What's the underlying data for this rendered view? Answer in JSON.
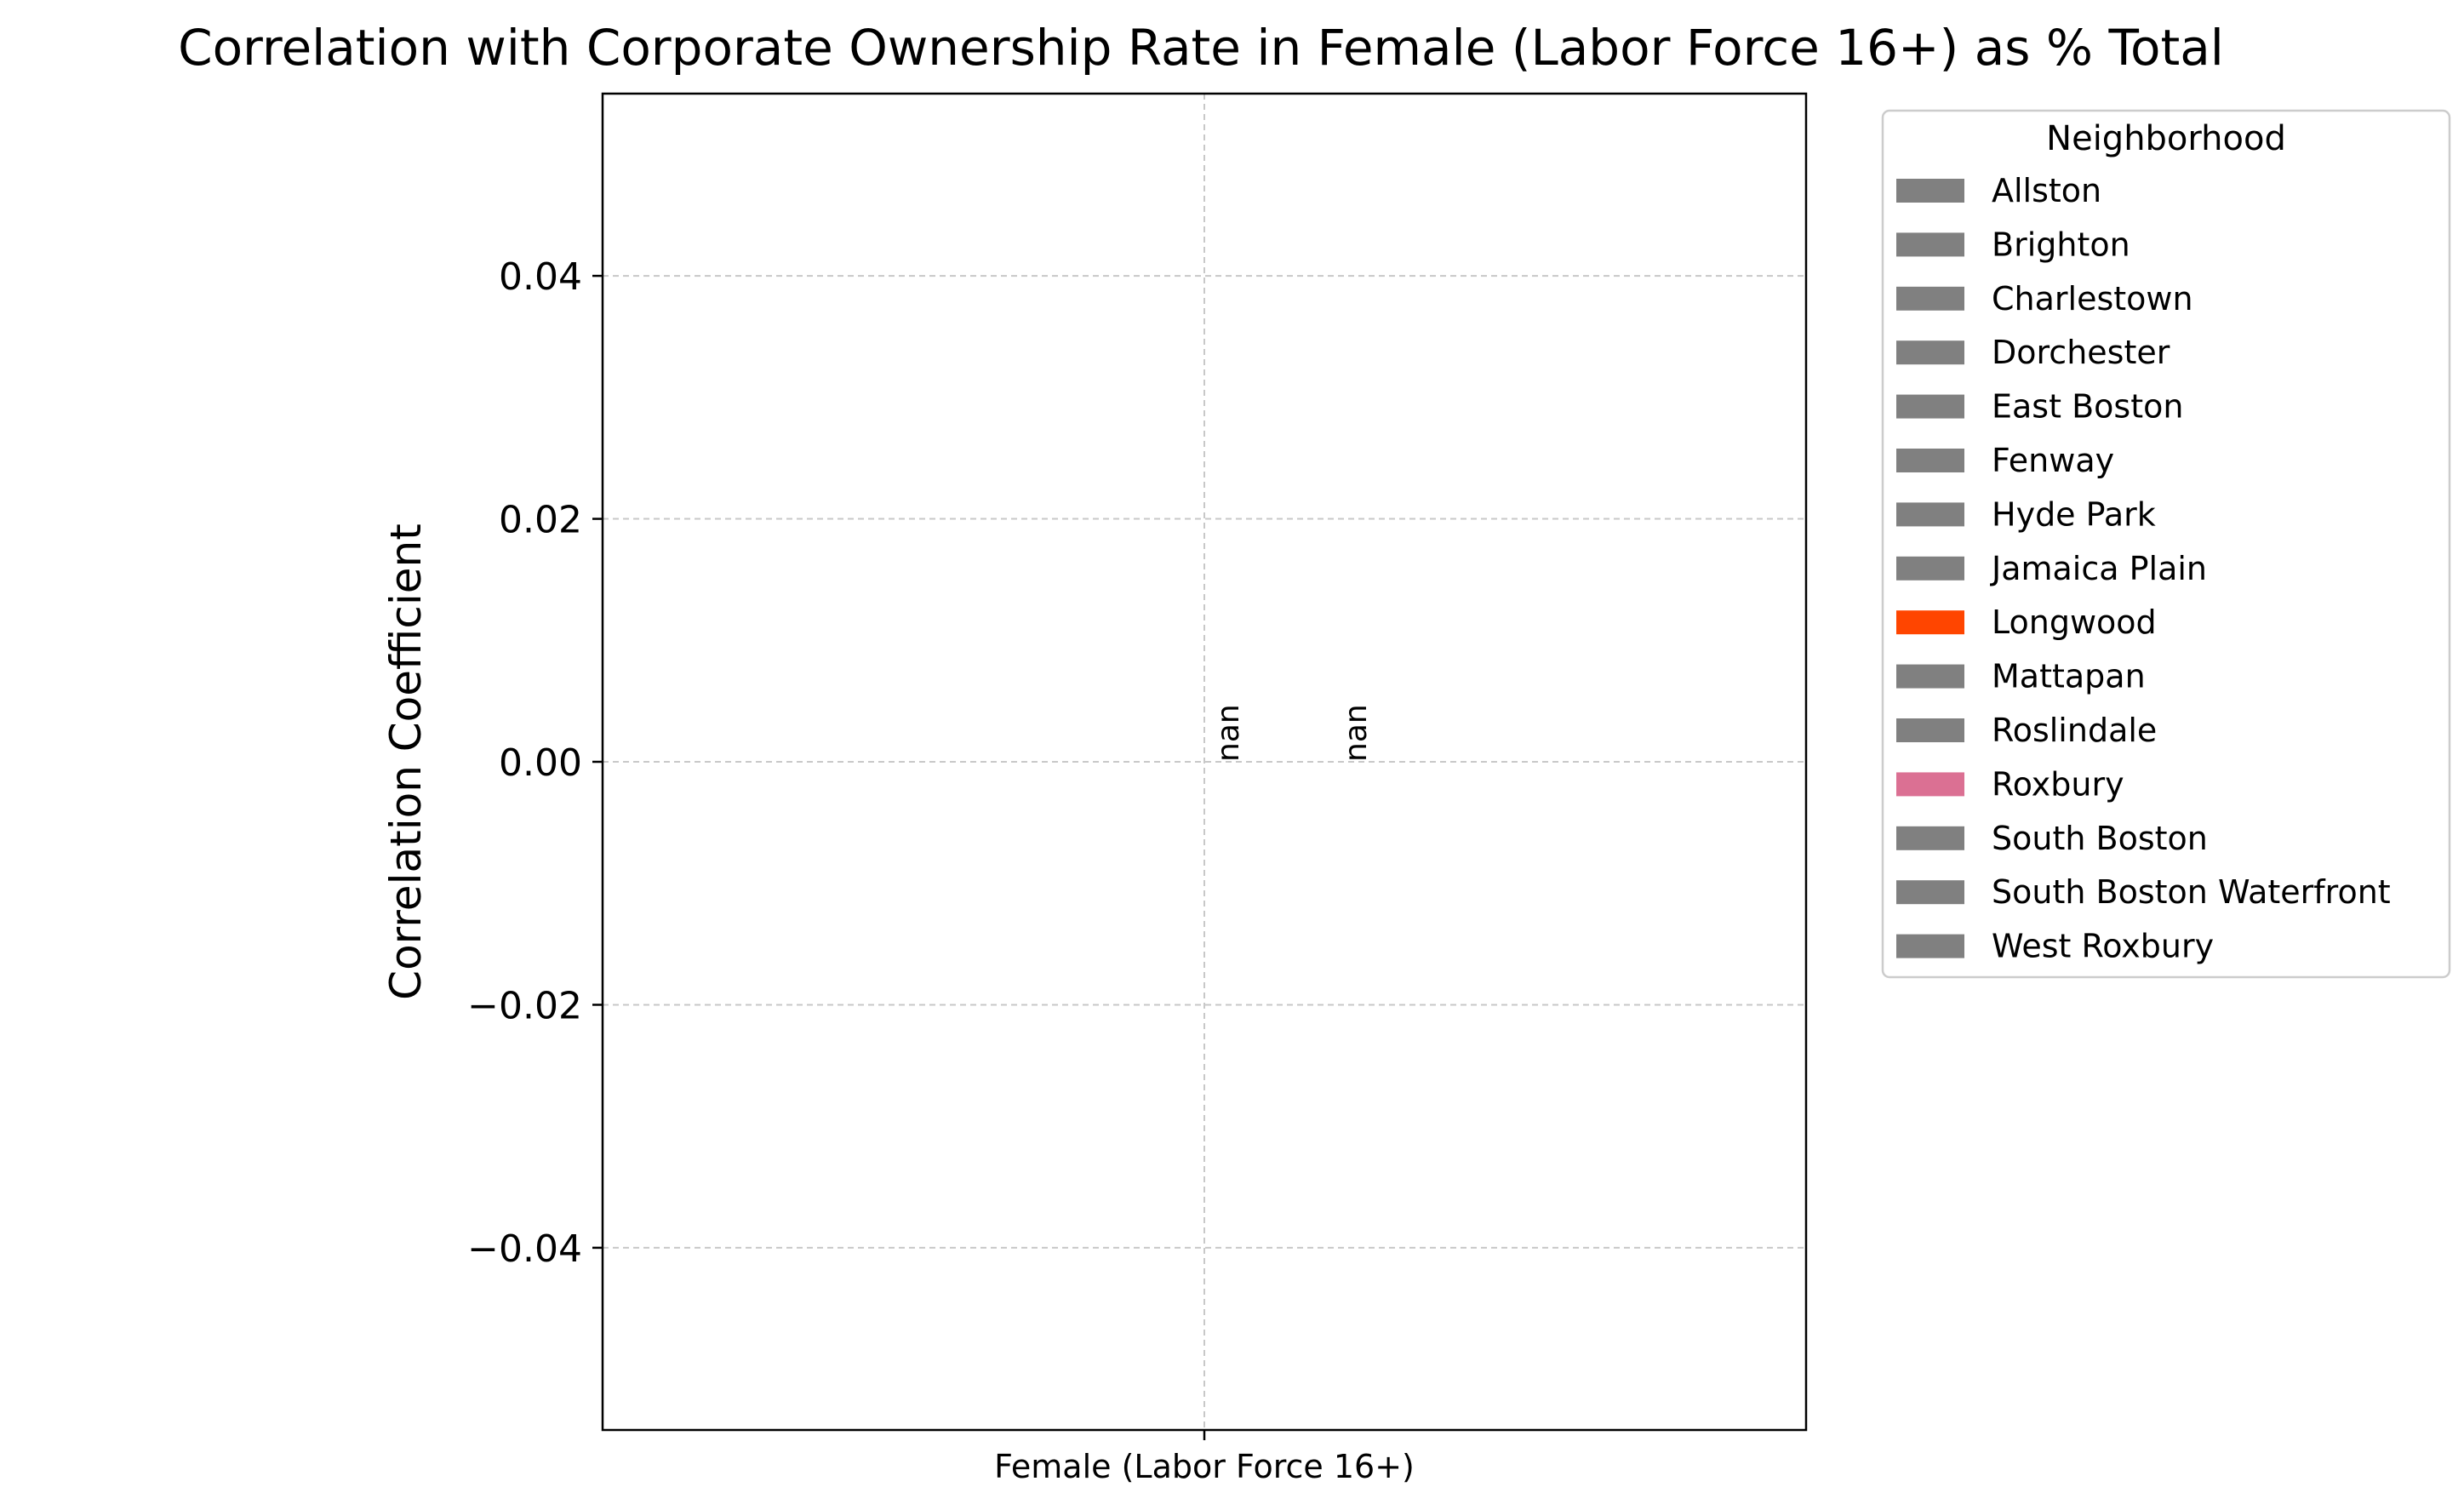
{
  "chart_data": {
    "type": "bar",
    "title": "Correlation with Corporate Ownership Rate in Female (Labor Force 16+) as % Total",
    "xlabel": "",
    "ylabel": "Correlation Coefficient",
    "categories": [
      "Female (Labor Force 16+)"
    ],
    "ylim": [
      -0.055,
      0.055
    ],
    "yticks": [
      -0.04,
      -0.02,
      0.0,
      0.02,
      0.04
    ],
    "ytick_labels": [
      "−0.04",
      "−0.02",
      "0.00",
      "0.02",
      "0.04"
    ],
    "grid": true,
    "legend": {
      "title": "Neighborhood",
      "placement": "outside right, top",
      "entries": [
        {
          "name": "Allston",
          "color": "#808080"
        },
        {
          "name": "Brighton",
          "color": "#808080"
        },
        {
          "name": "Charlestown",
          "color": "#808080"
        },
        {
          "name": "Dorchester",
          "color": "#808080"
        },
        {
          "name": "East Boston",
          "color": "#808080"
        },
        {
          "name": "Fenway",
          "color": "#808080"
        },
        {
          "name": "Hyde Park",
          "color": "#808080"
        },
        {
          "name": "Jamaica Plain",
          "color": "#808080"
        },
        {
          "name": "Longwood",
          "color": "#ff4500"
        },
        {
          "name": "Mattapan",
          "color": "#808080"
        },
        {
          "name": "Roslindale",
          "color": "#808080"
        },
        {
          "name": "Roxbury",
          "color": "#db7093"
        },
        {
          "name": "South Boston",
          "color": "#808080"
        },
        {
          "name": "South Boston Waterfront",
          "color": "#808080"
        },
        {
          "name": "West Roxbury",
          "color": "#808080"
        }
      ]
    },
    "series": [
      {
        "name": "Longwood",
        "values": [
          null
        ],
        "label": "nan"
      },
      {
        "name": "Roxbury",
        "values": [
          null
        ],
        "label": "nan"
      }
    ]
  }
}
